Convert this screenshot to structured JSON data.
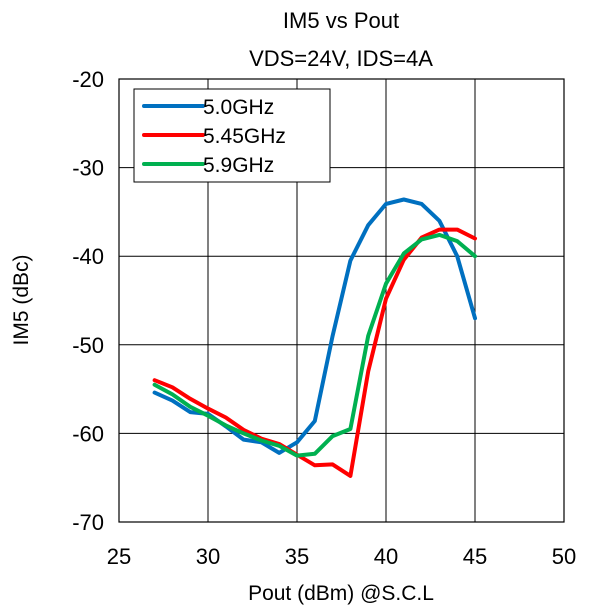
{
  "chart_data": {
    "type": "line",
    "title": "IM5 vs Pout",
    "subtitle": "VDS=24V, IDS=4A",
    "xlabel": "Pout (dBm) @S.C.L",
    "ylabel": "IM5 (dBc)",
    "xlim": [
      25,
      50
    ],
    "ylim": [
      -70,
      -20
    ],
    "xticks": [
      25,
      30,
      35,
      40,
      45,
      50
    ],
    "yticks": [
      -20,
      -30,
      -40,
      -50,
      -60,
      -70
    ],
    "grid": true,
    "legend_position": "top-left",
    "series": [
      {
        "name": "5.0GHz",
        "color": "#0070c0",
        "x": [
          27,
          28,
          29,
          30,
          31,
          32,
          33,
          34,
          35,
          36,
          37,
          38,
          39,
          40,
          41,
          42,
          43,
          44,
          45
        ],
        "y": [
          -55.4,
          -56.3,
          -57.6,
          -57.8,
          -59.2,
          -60.7,
          -61.0,
          -62.2,
          -61.0,
          -58.6,
          -49.0,
          -40.5,
          -36.5,
          -34.1,
          -33.6,
          -34.1,
          -36.0,
          -40.0,
          -47.0
        ]
      },
      {
        "name": "5.45GHz",
        "color": "#ff0000",
        "x": [
          27,
          28,
          29,
          30,
          31,
          32,
          33,
          34,
          35,
          36,
          37,
          38,
          39,
          40,
          41,
          42,
          43,
          44,
          45
        ],
        "y": [
          -54.0,
          -54.8,
          -56.1,
          -57.2,
          -58.2,
          -59.6,
          -60.6,
          -61.2,
          -62.4,
          -63.6,
          -63.5,
          -64.8,
          -53.0,
          -44.8,
          -40.4,
          -37.9,
          -37.0,
          -37.0,
          -38.0
        ]
      },
      {
        "name": "5.9GHz",
        "color": "#00b050",
        "x": [
          27,
          28,
          29,
          30,
          31,
          32,
          33,
          34,
          35,
          36,
          37,
          38,
          39,
          40,
          41,
          42,
          43,
          44,
          45
        ],
        "y": [
          -54.5,
          -55.6,
          -57.0,
          -58.0,
          -59.1,
          -60.0,
          -60.8,
          -61.4,
          -62.5,
          -62.3,
          -60.3,
          -59.5,
          -49.0,
          -43.1,
          -39.7,
          -38.1,
          -37.6,
          -38.3,
          -40.0
        ]
      }
    ]
  }
}
